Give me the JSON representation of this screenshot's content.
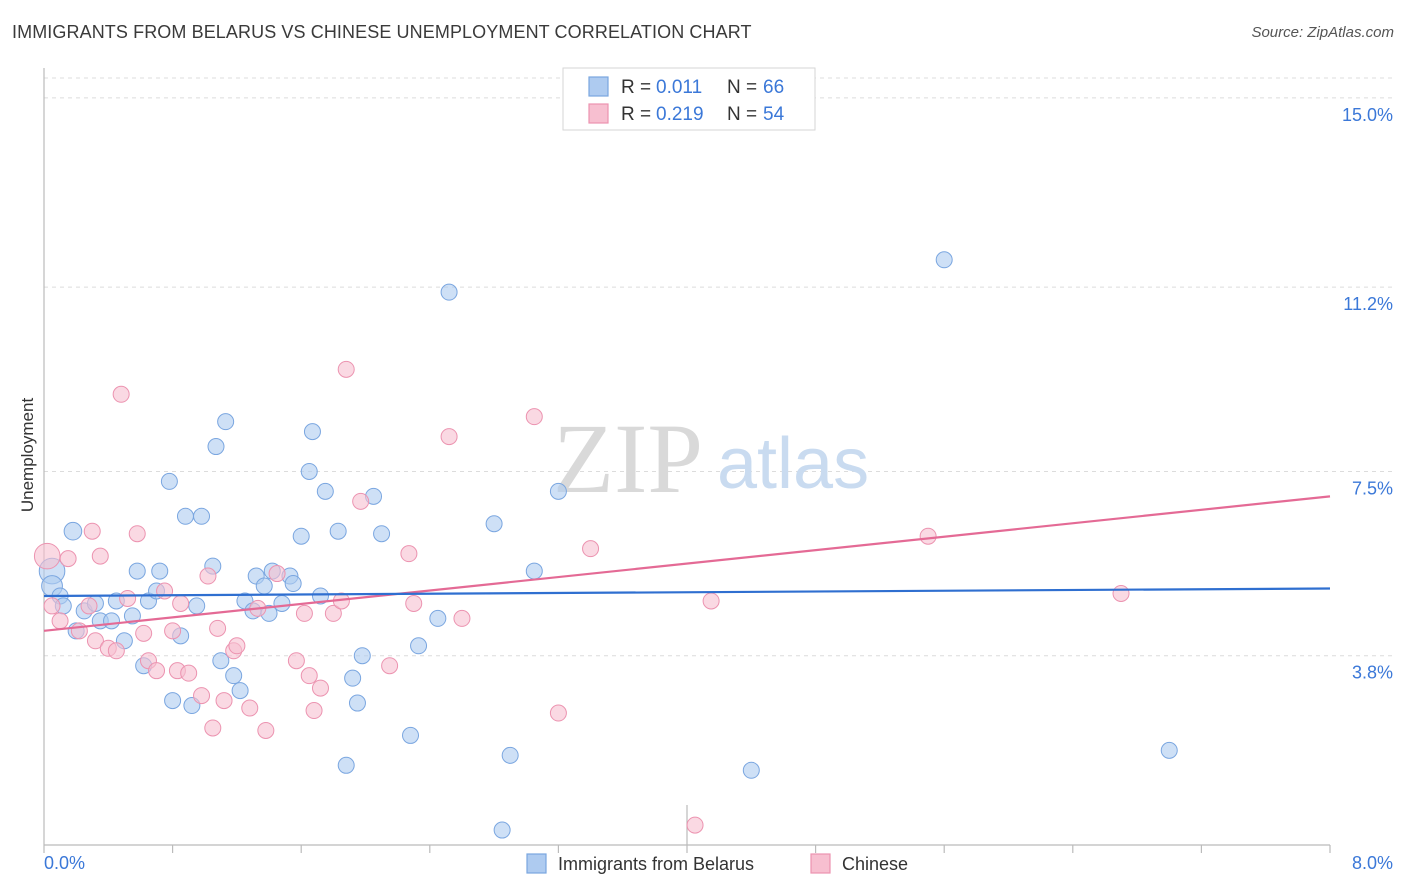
{
  "title": "IMMIGRANTS FROM BELARUS VS CHINESE UNEMPLOYMENT CORRELATION CHART",
  "source": "Source: ZipAtlas.com",
  "watermark": {
    "zip": "ZIP",
    "atlas": "atlas"
  },
  "legend": {
    "r_label": "R =",
    "n_label": "N =",
    "rows": [
      {
        "r": "0.011",
        "n": "66"
      },
      {
        "r": "0.219",
        "n": "54"
      }
    ]
  },
  "chart_data": {
    "type": "scatter",
    "xlabel": "",
    "ylabel": "Unemployment",
    "xlim": [
      0,
      8
    ],
    "ylim": [
      0,
      15.4
    ],
    "x_tick_labels": {
      "left": "0.0%",
      "right": "8.0%"
    },
    "y_ticks": [
      {
        "value": 3.8,
        "label": "3.8%"
      },
      {
        "value": 7.5,
        "label": "7.5%"
      },
      {
        "value": 11.2,
        "label": "11.2%"
      },
      {
        "value": 15.0,
        "label": "15.0%"
      }
    ],
    "grid": true,
    "colors": {
      "belarus_fill": "#aecbf0",
      "belarus_stroke": "#7aa6e0",
      "belarus_line": "#2f6fd0",
      "chinese_fill": "#f7bfd0",
      "chinese_stroke": "#ec93b0",
      "chinese_line": "#e46a95"
    },
    "series": [
      {
        "name": "Immigrants from Belarus",
        "trend": {
          "x": [
            0,
            8
          ],
          "y": [
            5.0,
            5.15
          ]
        },
        "points": [
          [
            0.05,
            5.5,
            1.6
          ],
          [
            0.05,
            5.2,
            1.3
          ],
          [
            0.1,
            5.0,
            1
          ],
          [
            0.12,
            4.8,
            1
          ],
          [
            0.18,
            6.3,
            1.1
          ],
          [
            0.2,
            4.3,
            1
          ],
          [
            0.25,
            4.7,
            1
          ],
          [
            0.32,
            4.85,
            1
          ],
          [
            0.35,
            4.5,
            1
          ],
          [
            0.42,
            4.5,
            1
          ],
          [
            0.45,
            4.9,
            1
          ],
          [
            0.5,
            4.1,
            1
          ],
          [
            0.55,
            4.6,
            1
          ],
          [
            0.58,
            5.5,
            1
          ],
          [
            0.62,
            3.6,
            1
          ],
          [
            0.65,
            4.9,
            1
          ],
          [
            0.7,
            5.1,
            1
          ],
          [
            0.72,
            5.5,
            1
          ],
          [
            0.78,
            7.3,
            1
          ],
          [
            0.8,
            2.9,
            1
          ],
          [
            0.85,
            4.2,
            1
          ],
          [
            0.88,
            6.6,
            1
          ],
          [
            0.92,
            2.8,
            1
          ],
          [
            0.95,
            4.8,
            1
          ],
          [
            0.98,
            6.6,
            1
          ],
          [
            1.05,
            5.6,
            1
          ],
          [
            1.07,
            8.0,
            1
          ],
          [
            1.1,
            3.7,
            1
          ],
          [
            1.13,
            8.5,
            1
          ],
          [
            1.18,
            3.4,
            1
          ],
          [
            1.22,
            3.1,
            1
          ],
          [
            1.25,
            4.9,
            1
          ],
          [
            1.3,
            4.7,
            1
          ],
          [
            1.32,
            5.4,
            1
          ],
          [
            1.37,
            5.2,
            1
          ],
          [
            1.4,
            4.65,
            1
          ],
          [
            1.42,
            5.5,
            1
          ],
          [
            1.48,
            4.85,
            1
          ],
          [
            1.53,
            5.4,
            1
          ],
          [
            1.55,
            5.25,
            1
          ],
          [
            1.6,
            6.2,
            1
          ],
          [
            1.65,
            7.5,
            1
          ],
          [
            1.67,
            8.3,
            1
          ],
          [
            1.72,
            5.0,
            1
          ],
          [
            1.75,
            7.1,
            1
          ],
          [
            1.83,
            6.3,
            1
          ],
          [
            1.88,
            1.6,
            1
          ],
          [
            1.92,
            3.35,
            1
          ],
          [
            1.95,
            2.85,
            1
          ],
          [
            1.98,
            3.8,
            1
          ],
          [
            2.05,
            7.0,
            1
          ],
          [
            2.1,
            6.25,
            1
          ],
          [
            2.28,
            2.2,
            1
          ],
          [
            2.33,
            4.0,
            1
          ],
          [
            2.45,
            4.55,
            1
          ],
          [
            2.52,
            11.1,
            1
          ],
          [
            2.8,
            6.45,
            1
          ],
          [
            2.85,
            0.3,
            1
          ],
          [
            2.9,
            1.8,
            1
          ],
          [
            3.05,
            5.5,
            1
          ],
          [
            3.2,
            7.1,
            1
          ],
          [
            4.4,
            1.5,
            1
          ],
          [
            5.6,
            11.75,
            1
          ],
          [
            7.0,
            1.9,
            1
          ]
        ]
      },
      {
        "name": "Chinese",
        "trend": {
          "x": [
            0,
            8
          ],
          "y": [
            4.3,
            7.0
          ]
        },
        "points": [
          [
            0.02,
            5.8,
            1.6
          ],
          [
            0.05,
            4.8,
            1
          ],
          [
            0.1,
            4.5,
            1
          ],
          [
            0.15,
            5.75,
            1
          ],
          [
            0.22,
            4.3,
            1
          ],
          [
            0.28,
            4.8,
            1
          ],
          [
            0.3,
            6.3,
            1
          ],
          [
            0.32,
            4.1,
            1
          ],
          [
            0.35,
            5.8,
            1
          ],
          [
            0.4,
            3.95,
            1
          ],
          [
            0.45,
            3.9,
            1
          ],
          [
            0.48,
            9.05,
            1
          ],
          [
            0.52,
            4.95,
            1
          ],
          [
            0.58,
            6.25,
            1
          ],
          [
            0.62,
            4.25,
            1
          ],
          [
            0.65,
            3.7,
            1
          ],
          [
            0.7,
            3.5,
            1
          ],
          [
            0.75,
            5.1,
            1
          ],
          [
            0.8,
            4.3,
            1
          ],
          [
            0.83,
            3.5,
            1
          ],
          [
            0.85,
            4.85,
            1
          ],
          [
            0.9,
            3.45,
            1
          ],
          [
            0.98,
            3.0,
            1
          ],
          [
            1.02,
            5.4,
            1
          ],
          [
            1.05,
            2.35,
            1
          ],
          [
            1.08,
            4.35,
            1
          ],
          [
            1.12,
            2.9,
            1
          ],
          [
            1.18,
            3.9,
            1
          ],
          [
            1.2,
            4.0,
            1
          ],
          [
            1.28,
            2.75,
            1
          ],
          [
            1.33,
            4.75,
            1
          ],
          [
            1.38,
            2.3,
            1
          ],
          [
            1.45,
            5.45,
            1
          ],
          [
            1.57,
            3.7,
            1
          ],
          [
            1.62,
            4.65,
            1
          ],
          [
            1.65,
            3.4,
            1
          ],
          [
            1.68,
            2.7,
            1
          ],
          [
            1.72,
            3.15,
            1
          ],
          [
            1.8,
            4.65,
            1
          ],
          [
            1.85,
            4.9,
            1
          ],
          [
            1.88,
            9.55,
            1
          ],
          [
            1.97,
            6.9,
            1
          ],
          [
            2.15,
            3.6,
            1
          ],
          [
            2.27,
            5.85,
            1
          ],
          [
            2.3,
            4.85,
            1
          ],
          [
            2.52,
            8.2,
            1
          ],
          [
            2.6,
            4.55,
            1
          ],
          [
            3.05,
            8.6,
            1
          ],
          [
            3.2,
            2.65,
            1
          ],
          [
            3.4,
            5.95,
            1
          ],
          [
            4.15,
            4.9,
            1
          ],
          [
            4.05,
            0.4,
            1
          ],
          [
            5.5,
            6.2,
            1
          ],
          [
            6.7,
            5.05,
            1
          ]
        ]
      }
    ]
  },
  "bottom_legend": [
    "Immigrants from Belarus",
    "Chinese"
  ]
}
